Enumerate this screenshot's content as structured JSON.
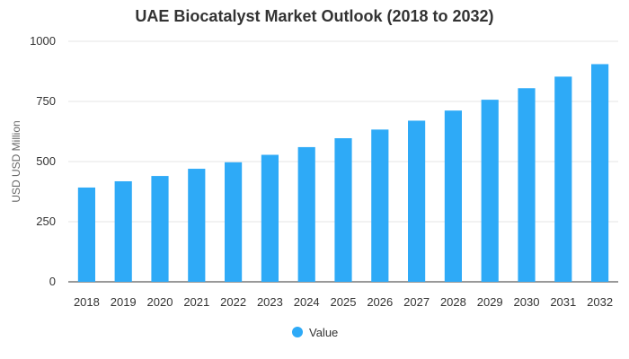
{
  "chart_data": {
    "type": "bar",
    "title": "UAE Biocatalyst Market Outlook (2018 to 2032)",
    "xlabel": "",
    "ylabel": "USD USD Million",
    "categories": [
      "2018",
      "2019",
      "2020",
      "2021",
      "2022",
      "2023",
      "2024",
      "2025",
      "2026",
      "2027",
      "2028",
      "2029",
      "2030",
      "2031",
      "2032"
    ],
    "series": [
      {
        "name": "Value",
        "values": [
          392,
          418,
          440,
          470,
          497,
          528,
          560,
          597,
          633,
          670,
          712,
          757,
          805,
          853,
          905
        ]
      }
    ],
    "ylim": [
      0,
      1000
    ],
    "yticks": [
      0,
      250,
      500,
      750,
      1000
    ],
    "grid": true,
    "legend_position": "bottom-center",
    "bar_color": "#2eaaf7"
  }
}
